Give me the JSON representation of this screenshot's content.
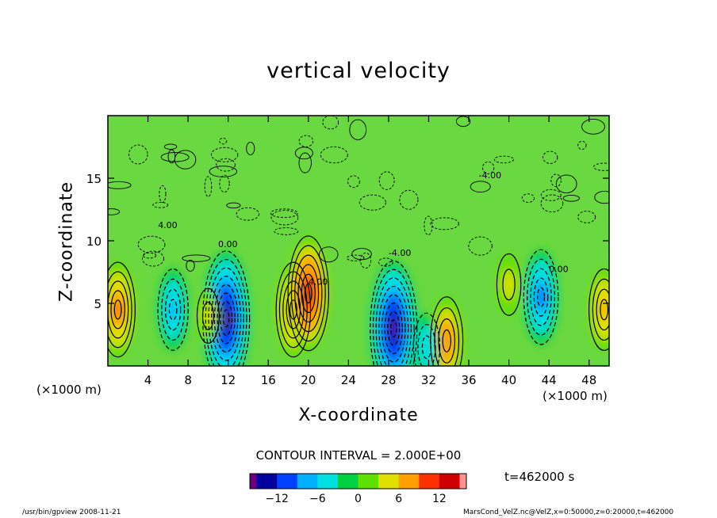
{
  "chart_data": {
    "type": "heatmap",
    "title": "vertical velocity",
    "xlabel": "X-coordinate",
    "ylabel": "Z-coordinate",
    "x_unit": "(×1000 m)",
    "y_unit": "(×1000 m)",
    "xlim": [
      0,
      50
    ],
    "ylim": [
      0,
      20
    ],
    "x_ticks": [
      4,
      8,
      12,
      16,
      20,
      24,
      28,
      32,
      36,
      40,
      44,
      48
    ],
    "y_ticks": [
      5,
      10,
      15
    ],
    "contour_interval": "CONTOUR INTERVAL = 2.000E+00",
    "contour_labels": [
      "0.00",
      "4.00",
      "-4.00"
    ],
    "colorbar": {
      "range": [
        -16,
        16
      ],
      "ticks": [
        -12,
        -6,
        0,
        6,
        12
      ],
      "colors": [
        "#6a0080",
        "#0000a0",
        "#0040ff",
        "#00b0ff",
        "#00e0e0",
        "#00d040",
        "#60e000",
        "#e0e000",
        "#ffa000",
        "#ff3000",
        "#d00000",
        "#ff9090"
      ]
    },
    "cells": [
      {
        "x": 1,
        "z": 4.5,
        "w": 9
      },
      {
        "x": 6.5,
        "z": 4.5,
        "w": -7
      },
      {
        "x": 11.8,
        "z": 3.8,
        "w": -15
      },
      {
        "x": 18.5,
        "z": 4.5,
        "w": 9
      },
      {
        "x": 20,
        "z": 5.8,
        "w": 12
      },
      {
        "x": 28.5,
        "z": 3,
        "w": -15
      },
      {
        "x": 33.8,
        "z": 2,
        "w": 8
      },
      {
        "x": 31.8,
        "z": 1.5,
        "w": -5
      },
      {
        "x": 43.2,
        "z": 5.5,
        "w": -9
      },
      {
        "x": 49.5,
        "z": 4.5,
        "w": 7
      },
      {
        "x": 40,
        "z": 6.5,
        "w": 4
      },
      {
        "x": 10,
        "z": 4,
        "w": 3
      }
    ],
    "time_label": "t=462000 s"
  },
  "footer": {
    "left": "/usr/bin/gpview   2008-11-21",
    "right": "MarsCond_VelZ.nc@VelZ,x=0:50000,z=0:20000,t=462000"
  }
}
